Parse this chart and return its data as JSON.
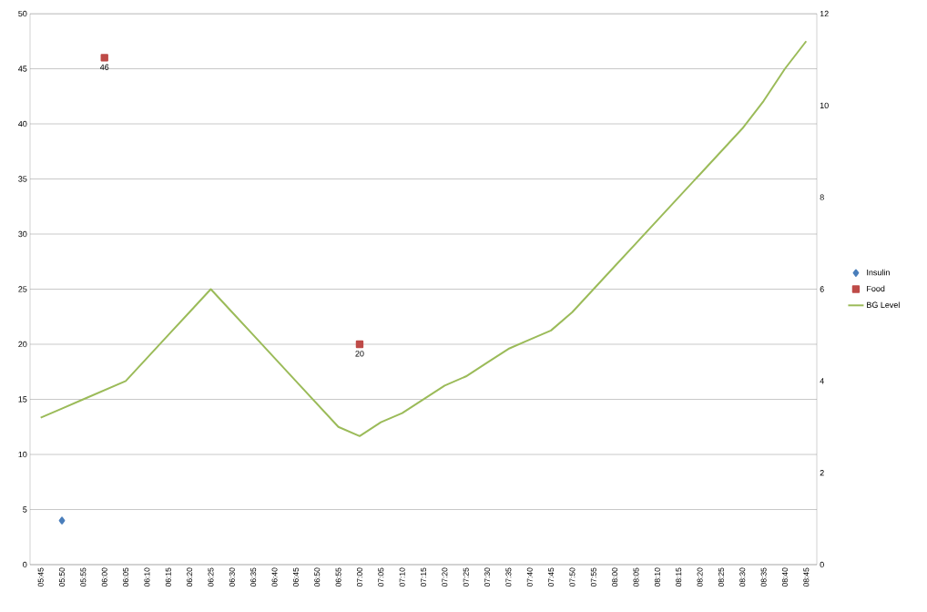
{
  "chart_data": {
    "type": "line",
    "categories": [
      "05:45",
      "05:50",
      "05:55",
      "06:00",
      "06:05",
      "06:10",
      "06:15",
      "06:20",
      "06:25",
      "06:30",
      "06:35",
      "06:40",
      "06:45",
      "06:50",
      "06:55",
      "07:00",
      "07:05",
      "07:10",
      "07:15",
      "07:20",
      "07:25",
      "07:30",
      "07:35",
      "07:40",
      "07:45",
      "07:50",
      "07:55",
      "08:00",
      "08:05",
      "08:10",
      "08:15",
      "08:20",
      "08:25",
      "08:30",
      "08:35",
      "08:40",
      "08:45"
    ],
    "series": [
      {
        "name": "Insulin",
        "type": "scatter",
        "color": "#4a7ebb",
        "marker": "diamond",
        "values": [
          null,
          4,
          null,
          null,
          null,
          null,
          null,
          null,
          null,
          null,
          null,
          null,
          null,
          null,
          null,
          null,
          null,
          null,
          null,
          null,
          null,
          null,
          null,
          null,
          null,
          null,
          null,
          null,
          null,
          null,
          null,
          null,
          null,
          null,
          null,
          null,
          null
        ]
      },
      {
        "name": "Food",
        "type": "scatter",
        "color": "#be4b48",
        "marker": "square",
        "values": [
          null,
          null,
          null,
          46,
          null,
          null,
          null,
          null,
          null,
          null,
          null,
          null,
          null,
          null,
          null,
          20,
          null,
          null,
          null,
          null,
          null,
          null,
          null,
          null,
          null,
          null,
          null,
          null,
          null,
          null,
          null,
          null,
          null,
          null,
          null,
          null,
          null
        ],
        "value_labels": [
          null,
          null,
          null,
          "46",
          null,
          null,
          null,
          null,
          null,
          null,
          null,
          null,
          null,
          null,
          null,
          "20",
          null,
          null,
          null,
          null,
          null,
          null,
          null,
          null,
          null,
          null,
          null,
          null,
          null,
          null,
          null,
          null,
          null,
          null,
          null,
          null,
          null
        ]
      },
      {
        "name": "BG Level",
        "color": "#9bbb59",
        "marker": "none",
        "axis": "y2",
        "values": [
          3.2,
          3.4,
          3.6,
          3.8,
          4.0,
          4.5,
          5.0,
          5.5,
          6.0,
          5.5,
          5.0,
          4.5,
          4.0,
          3.5,
          3.0,
          2.8,
          3.1,
          3.3,
          3.6,
          3.9,
          4.1,
          4.4,
          4.7,
          4.9,
          5.1,
          5.5,
          6.0,
          6.5,
          7.0,
          7.5,
          8.0,
          8.5,
          9.0,
          9.5,
          10.1,
          10.8,
          11.4
        ]
      }
    ],
    "ylim": [
      0,
      50
    ],
    "yticks": [
      0,
      5,
      10,
      15,
      20,
      25,
      30,
      35,
      40,
      45,
      50
    ],
    "y2lim": [
      0,
      12
    ],
    "y2ticks": [
      0,
      2,
      4,
      6,
      8,
      10,
      12
    ],
    "grid": "y",
    "legend": "right"
  }
}
